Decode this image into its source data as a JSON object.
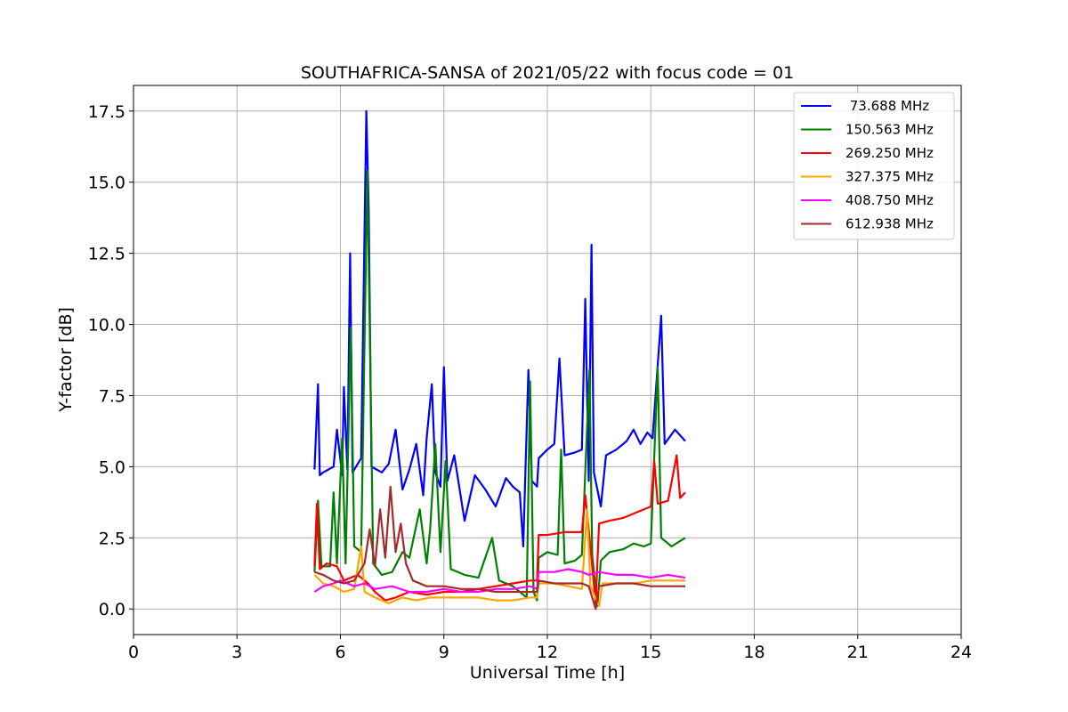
{
  "chart_data": {
    "type": "line",
    "title": "SOUTHAFRICA-SANSA of 2021/05/22 with focus code = 01",
    "xlabel": "Universal Time [h]",
    "ylabel": "Y-factor [dB]",
    "xlim": [
      0,
      24
    ],
    "ylim": [
      -0.9,
      18.4
    ],
    "xticks": [
      0,
      3,
      6,
      9,
      12,
      15,
      18,
      21,
      24
    ],
    "xtick_labels": [
      "0",
      "3",
      "6",
      "9",
      "12",
      "15",
      "18",
      "21",
      "24"
    ],
    "yticks": [
      0,
      2.5,
      5,
      7.5,
      10,
      12.5,
      15,
      17.5
    ],
    "ytick_labels": [
      "0.0",
      "2.5",
      "5.0",
      "7.5",
      "10.0",
      "12.5",
      "15.0",
      "17.5"
    ],
    "grid": true,
    "legend_position": "top-right",
    "series": [
      {
        "name": " 73.688 MHz",
        "color": "#0000ff",
        "points": [
          [
            5.25,
            4.9
          ],
          [
            5.35,
            7.9
          ],
          [
            5.4,
            4.7
          ],
          [
            5.5,
            4.8
          ],
          [
            5.8,
            5.0
          ],
          [
            5.9,
            6.3
          ],
          [
            6.05,
            4.7
          ],
          [
            6.1,
            7.8
          ],
          [
            6.2,
            4.9
          ],
          [
            6.28,
            12.5
          ],
          [
            6.35,
            4.8
          ],
          [
            6.6,
            5.3
          ],
          [
            6.75,
            17.5
          ],
          [
            6.82,
            14.0
          ],
          [
            6.9,
            5.0
          ],
          [
            7.2,
            4.8
          ],
          [
            7.4,
            5.1
          ],
          [
            7.6,
            6.3
          ],
          [
            7.8,
            4.2
          ],
          [
            8.0,
            4.9
          ],
          [
            8.2,
            5.8
          ],
          [
            8.4,
            4.0
          ],
          [
            8.5,
            6.0
          ],
          [
            8.65,
            7.9
          ],
          [
            8.75,
            4.8
          ],
          [
            8.9,
            4.3
          ],
          [
            9.0,
            8.5
          ],
          [
            9.1,
            4.5
          ],
          [
            9.3,
            5.4
          ],
          [
            9.6,
            3.1
          ],
          [
            9.9,
            4.7
          ],
          [
            10.2,
            4.2
          ],
          [
            10.5,
            3.6
          ],
          [
            10.8,
            4.6
          ],
          [
            11.0,
            4.3
          ],
          [
            11.2,
            4.1
          ],
          [
            11.3,
            2.2
          ],
          [
            11.45,
            8.4
          ],
          [
            11.55,
            4.5
          ],
          [
            11.7,
            4.3
          ],
          [
            11.75,
            5.3
          ],
          [
            12.0,
            5.6
          ],
          [
            12.2,
            5.8
          ],
          [
            12.35,
            8.8
          ],
          [
            12.5,
            5.4
          ],
          [
            12.8,
            5.5
          ],
          [
            13.0,
            5.6
          ],
          [
            13.1,
            10.9
          ],
          [
            13.2,
            4.5
          ],
          [
            13.28,
            12.8
          ],
          [
            13.35,
            4.8
          ],
          [
            13.55,
            3.6
          ],
          [
            13.7,
            5.4
          ],
          [
            14.0,
            5.6
          ],
          [
            14.3,
            5.9
          ],
          [
            14.5,
            6.3
          ],
          [
            14.7,
            5.8
          ],
          [
            14.9,
            6.2
          ],
          [
            15.05,
            6.0
          ],
          [
            15.3,
            10.3
          ],
          [
            15.4,
            5.8
          ],
          [
            15.7,
            6.3
          ],
          [
            16.0,
            5.9
          ]
        ]
      },
      {
        "name": "150.563 MHz",
        "color": "#008000",
        "points": [
          [
            5.25,
            1.3
          ],
          [
            5.35,
            3.8
          ],
          [
            5.45,
            1.5
          ],
          [
            5.7,
            1.5
          ],
          [
            5.8,
            4.1
          ],
          [
            5.9,
            1.6
          ],
          [
            6.05,
            6.0
          ],
          [
            6.15,
            1.6
          ],
          [
            6.3,
            9.9
          ],
          [
            6.4,
            2.2
          ],
          [
            6.6,
            2.0
          ],
          [
            6.78,
            15.4
          ],
          [
            6.85,
            10.0
          ],
          [
            6.95,
            1.6
          ],
          [
            7.2,
            1.2
          ],
          [
            7.5,
            1.3
          ],
          [
            7.8,
            2.0
          ],
          [
            8.0,
            1.8
          ],
          [
            8.3,
            3.5
          ],
          [
            8.5,
            1.6
          ],
          [
            8.6,
            2.8
          ],
          [
            8.75,
            5.8
          ],
          [
            8.9,
            2.0
          ],
          [
            9.05,
            5.2
          ],
          [
            9.2,
            1.4
          ],
          [
            9.6,
            1.2
          ],
          [
            10.0,
            1.1
          ],
          [
            10.4,
            2.5
          ],
          [
            10.6,
            1.0
          ],
          [
            11.0,
            0.8
          ],
          [
            11.4,
            0.4
          ],
          [
            11.5,
            8.0
          ],
          [
            11.6,
            0.6
          ],
          [
            11.7,
            0.3
          ],
          [
            11.75,
            1.8
          ],
          [
            12.0,
            2.0
          ],
          [
            12.3,
            1.9
          ],
          [
            12.4,
            5.6
          ],
          [
            12.5,
            1.6
          ],
          [
            12.8,
            1.7
          ],
          [
            13.0,
            1.9
          ],
          [
            13.22,
            8.4
          ],
          [
            13.3,
            1.9
          ],
          [
            13.45,
            0.1
          ],
          [
            13.55,
            1.7
          ],
          [
            13.8,
            2.0
          ],
          [
            14.2,
            2.1
          ],
          [
            14.5,
            2.3
          ],
          [
            14.8,
            2.2
          ],
          [
            15.0,
            2.3
          ],
          [
            15.2,
            8.5
          ],
          [
            15.3,
            2.5
          ],
          [
            15.6,
            2.2
          ],
          [
            16.0,
            2.5
          ]
        ]
      },
      {
        "name": "269.250 MHz",
        "color": "#ff0000",
        "points": [
          [
            5.25,
            1.5
          ],
          [
            5.32,
            3.7
          ],
          [
            5.4,
            1.4
          ],
          [
            5.6,
            1.6
          ],
          [
            5.9,
            1.5
          ],
          [
            6.1,
            1.0
          ],
          [
            6.5,
            1.2
          ],
          [
            6.8,
            0.9
          ],
          [
            7.0,
            0.6
          ],
          [
            7.3,
            0.3
          ],
          [
            7.6,
            0.4
          ],
          [
            8.0,
            0.6
          ],
          [
            8.5,
            0.5
          ],
          [
            9.0,
            0.6
          ],
          [
            9.5,
            0.6
          ],
          [
            10.0,
            0.7
          ],
          [
            10.5,
            0.8
          ],
          [
            11.0,
            0.9
          ],
          [
            11.5,
            1.0
          ],
          [
            11.7,
            1.0
          ],
          [
            11.75,
            2.6
          ],
          [
            12.0,
            2.6
          ],
          [
            12.5,
            2.7
          ],
          [
            13.0,
            2.7
          ],
          [
            13.1,
            4.0
          ],
          [
            13.2,
            2.8
          ],
          [
            13.4,
            0.2
          ],
          [
            13.5,
            3.0
          ],
          [
            13.8,
            3.1
          ],
          [
            14.2,
            3.2
          ],
          [
            14.6,
            3.4
          ],
          [
            15.0,
            3.6
          ],
          [
            15.1,
            5.2
          ],
          [
            15.2,
            3.7
          ],
          [
            15.5,
            3.8
          ],
          [
            15.75,
            5.4
          ],
          [
            15.85,
            3.9
          ],
          [
            16.0,
            4.1
          ]
        ]
      },
      {
        "name": "327.375 MHz",
        "color": "#ffa500",
        "points": [
          [
            5.25,
            1.2
          ],
          [
            5.5,
            0.9
          ],
          [
            5.8,
            0.8
          ],
          [
            6.1,
            0.6
          ],
          [
            6.4,
            0.7
          ],
          [
            6.6,
            2.2
          ],
          [
            6.7,
            0.6
          ],
          [
            7.0,
            0.4
          ],
          [
            7.4,
            0.2
          ],
          [
            7.8,
            0.4
          ],
          [
            8.2,
            0.3
          ],
          [
            8.6,
            0.4
          ],
          [
            9.0,
            0.4
          ],
          [
            9.5,
            0.4
          ],
          [
            10.0,
            0.4
          ],
          [
            10.5,
            0.3
          ],
          [
            11.0,
            0.3
          ],
          [
            11.5,
            0.4
          ],
          [
            11.7,
            0.4
          ],
          [
            11.75,
            0.9
          ],
          [
            12.2,
            0.9
          ],
          [
            12.6,
            0.8
          ],
          [
            13.0,
            0.7
          ],
          [
            13.15,
            3.5
          ],
          [
            13.25,
            0.8
          ],
          [
            13.5,
            0.1
          ],
          [
            13.6,
            0.9
          ],
          [
            14.0,
            0.9
          ],
          [
            14.5,
            0.9
          ],
          [
            15.0,
            1.0
          ],
          [
            15.5,
            1.0
          ],
          [
            16.0,
            1.0
          ]
        ]
      },
      {
        "name": "408.750 MHz",
        "color": "#ff00ff",
        "points": [
          [
            5.25,
            0.6
          ],
          [
            5.5,
            0.8
          ],
          [
            5.8,
            0.9
          ],
          [
            6.0,
            1.0
          ],
          [
            6.4,
            0.8
          ],
          [
            6.7,
            0.9
          ],
          [
            7.0,
            0.7
          ],
          [
            7.5,
            0.8
          ],
          [
            8.0,
            0.6
          ],
          [
            8.5,
            0.6
          ],
          [
            9.0,
            0.7
          ],
          [
            9.5,
            0.6
          ],
          [
            10.0,
            0.6
          ],
          [
            10.5,
            0.7
          ],
          [
            11.0,
            0.7
          ],
          [
            11.5,
            0.8
          ],
          [
            11.7,
            0.7
          ],
          [
            11.75,
            1.3
          ],
          [
            12.2,
            1.3
          ],
          [
            12.6,
            1.4
          ],
          [
            13.0,
            1.3
          ],
          [
            13.2,
            1.2
          ],
          [
            13.5,
            1.3
          ],
          [
            14.0,
            1.2
          ],
          [
            14.5,
            1.2
          ],
          [
            15.0,
            1.1
          ],
          [
            15.5,
            1.2
          ],
          [
            16.0,
            1.1
          ]
        ]
      },
      {
        "name": "612.938 MHz",
        "color": "#a52a2a",
        "points": [
          [
            5.25,
            1.3
          ],
          [
            5.5,
            1.2
          ],
          [
            5.8,
            1.0
          ],
          [
            6.1,
            0.9
          ],
          [
            6.4,
            1.0
          ],
          [
            6.7,
            1.6
          ],
          [
            6.85,
            2.8
          ],
          [
            7.0,
            1.5
          ],
          [
            7.15,
            3.5
          ],
          [
            7.3,
            1.8
          ],
          [
            7.45,
            4.3
          ],
          [
            7.6,
            2.0
          ],
          [
            7.75,
            3.0
          ],
          [
            7.9,
            1.6
          ],
          [
            8.1,
            1.0
          ],
          [
            8.5,
            0.8
          ],
          [
            9.0,
            0.8
          ],
          [
            9.5,
            0.7
          ],
          [
            10.0,
            0.7
          ],
          [
            10.5,
            0.6
          ],
          [
            11.0,
            0.6
          ],
          [
            11.5,
            0.6
          ],
          [
            11.7,
            0.6
          ],
          [
            11.75,
            1.0
          ],
          [
            12.2,
            0.9
          ],
          [
            12.6,
            0.9
          ],
          [
            13.0,
            0.9
          ],
          [
            13.2,
            0.8
          ],
          [
            13.4,
            0.0
          ],
          [
            13.5,
            0.8
          ],
          [
            14.0,
            0.9
          ],
          [
            14.5,
            0.9
          ],
          [
            15.0,
            0.8
          ],
          [
            15.5,
            0.8
          ],
          [
            16.0,
            0.8
          ]
        ]
      }
    ]
  }
}
